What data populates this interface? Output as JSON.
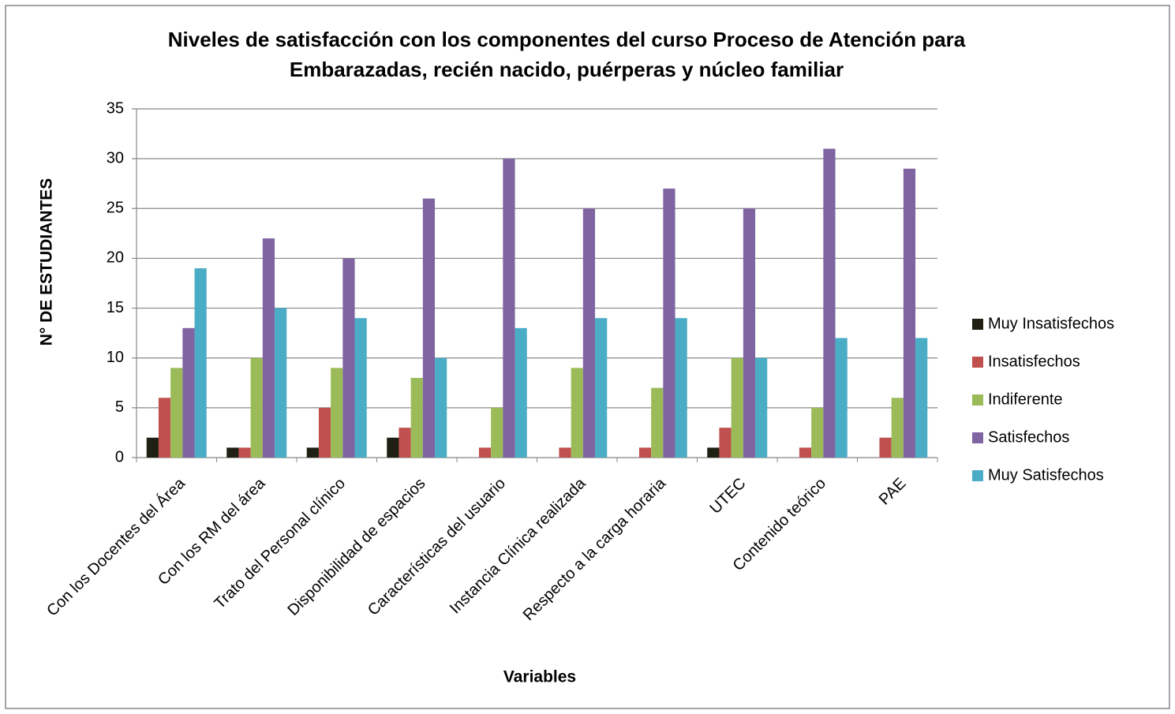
{
  "chart_data": {
    "type": "bar",
    "title": [
      "Niveles de satisfacción con los componentes del curso Proceso de Atención para",
      "Embarazadas, recién nacido, puérperas y núcleo familiar"
    ],
    "x_label": "Variables",
    "y_label": "N° DE ESTUDIANTES",
    "categories": [
      "Con los Docentes del Área",
      "Con los RM del área",
      "Trato del Personal clínico",
      "Disponibilidad de espacios",
      "Características  del usuario",
      "Instancia Clínica realizada",
      "Respecto a la carga horaria",
      "UTEC",
      "Contenido teórico",
      "PAE"
    ],
    "series": [
      {
        "name": "Muy Insatisfechos",
        "color": "#1f1f14",
        "values": [
          2,
          1,
          1,
          2,
          0,
          0,
          0,
          1,
          0,
          0
        ]
      },
      {
        "name": "Insatisfechos",
        "color": "#c0504d",
        "values": [
          6,
          1,
          5,
          3,
          1,
          1,
          1,
          3,
          1,
          2
        ]
      },
      {
        "name": "Indiferente",
        "color": "#9bbb59",
        "values": [
          9,
          10,
          9,
          8,
          5,
          9,
          7,
          10,
          5,
          6
        ]
      },
      {
        "name": "Satisfechos",
        "color": "#8064a2",
        "values": [
          13,
          22,
          20,
          26,
          30,
          25,
          27,
          25,
          31,
          29
        ]
      },
      {
        "name": "Muy Satisfechos",
        "color": "#4bacc6",
        "values": [
          19,
          15,
          14,
          10,
          13,
          14,
          14,
          10,
          12,
          12
        ]
      }
    ],
    "ylim": [
      0,
      35
    ],
    "yticks": [
      0,
      5,
      10,
      15,
      20,
      25,
      30,
      35
    ],
    "grid": true,
    "legend": "right"
  }
}
